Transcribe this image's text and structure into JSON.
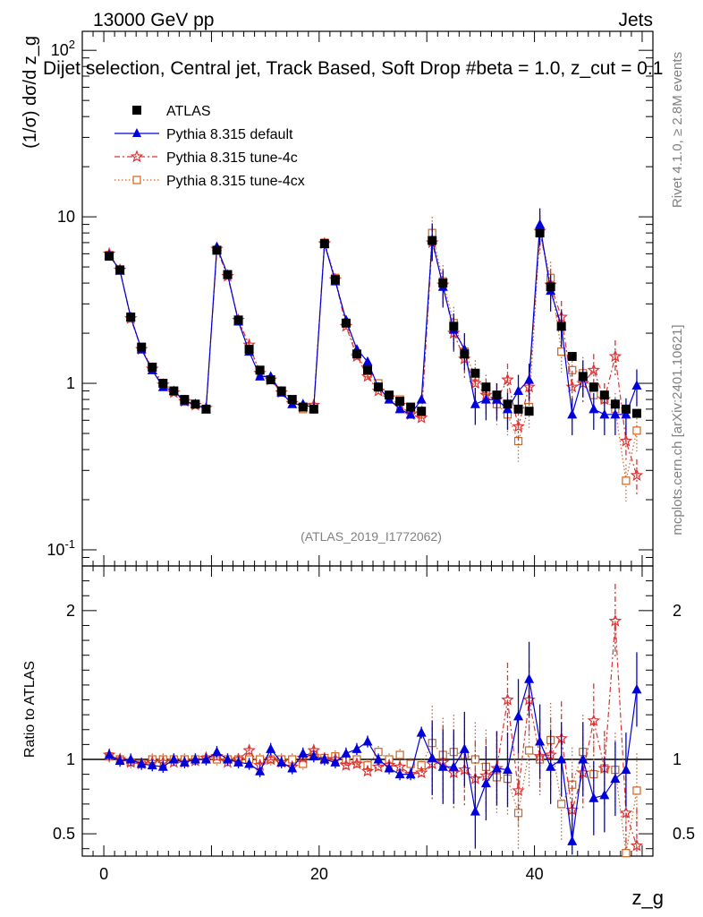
{
  "header": {
    "left": "13000 GeV pp",
    "right": "Jets"
  },
  "side_text": {
    "rivet": "Rivet 4.1.0, ≥ 2.8M events",
    "mcplots": "mcplots.cern.ch [arXiv:2401.10621]"
  },
  "colors": {
    "atlas": "#000000",
    "default": "#0000dd",
    "tune4c": "#dd3333",
    "tune4cx": "#cc6622"
  },
  "chart_data": {
    "type": "scatter",
    "title": "Dijet selection, Central jet, Track Based, Soft Drop #beta = 1.0, z_cut = 0.1",
    "xlabel": "z_g",
    "ylabel": "(1/σ) dσ/d z_g",
    "ratio_ylabel": "Ratio to ATLAS",
    "watermark": "(ATLAS_2019_I1772062)",
    "xlim": [
      -2,
      51
    ],
    "ylim": [
      0.08,
      130
    ],
    "ratio_ylim": [
      0.35,
      2.3
    ],
    "x_ticks": [
      "0",
      "20",
      "40"
    ],
    "y_ticks": [
      "10^-1",
      "1",
      "10",
      "10^2"
    ],
    "ratio_ticks": [
      "0.5",
      "1",
      "2"
    ],
    "x": [
      0.5,
      1.5,
      2.5,
      3.5,
      4.5,
      5.5,
      6.5,
      7.5,
      8.5,
      9.5,
      10.5,
      11.5,
      12.5,
      13.5,
      14.5,
      15.5,
      16.5,
      17.5,
      18.5,
      19.5,
      20.5,
      21.5,
      22.5,
      23.5,
      24.5,
      25.5,
      26.5,
      27.5,
      28.5,
      29.5,
      30.5,
      31.5,
      32.5,
      33.5,
      34.5,
      35.5,
      36.5,
      37.5,
      38.5,
      39.5,
      40.5,
      41.5,
      42.5,
      43.5,
      44.5,
      45.5,
      46.5,
      47.5,
      48.5,
      49.5
    ],
    "series": [
      {
        "name": "ATLAS",
        "marker": "square-filled",
        "values": [
          5.8,
          4.8,
          2.5,
          1.65,
          1.25,
          1.0,
          0.9,
          0.8,
          0.75,
          0.7,
          6.3,
          4.5,
          2.4,
          1.6,
          1.2,
          1.05,
          0.9,
          0.8,
          0.72,
          0.7,
          6.9,
          4.2,
          2.3,
          1.5,
          1.2,
          0.95,
          0.85,
          0.78,
          0.72,
          0.68,
          7.2,
          4.0,
          2.2,
          1.5,
          1.15,
          0.95,
          0.85,
          0.75,
          0.7,
          0.68,
          8.0,
          3.8,
          2.2,
          1.45,
          1.1,
          0.95,
          0.85,
          0.75,
          0.7,
          0.66
        ]
      },
      {
        "name": "Pythia 8.315 default",
        "marker": "triangle-filled",
        "values": [
          5.9,
          4.75,
          2.5,
          1.6,
          1.2,
          0.95,
          0.9,
          0.78,
          0.75,
          0.7,
          6.6,
          4.5,
          2.35,
          1.55,
          1.1,
          1.1,
          0.88,
          0.75,
          0.75,
          0.71,
          6.9,
          4.1,
          2.4,
          1.6,
          1.35,
          0.95,
          0.8,
          0.7,
          0.65,
          0.8,
          7.3,
          3.8,
          2.1,
          1.6,
          0.75,
          0.8,
          0.8,
          0.7,
          0.9,
          1.05,
          9.0,
          3.6,
          2.2,
          0.65,
          1.1,
          0.7,
          0.65,
          0.65,
          0.65,
          0.97
        ]
      },
      {
        "name": "Pythia 8.315 tune-4c",
        "marker": "star-open",
        "values": [
          6.0,
          4.8,
          2.45,
          1.6,
          1.22,
          0.98,
          0.88,
          0.78,
          0.74,
          0.71,
          6.4,
          4.4,
          2.4,
          1.7,
          1.15,
          1.05,
          0.88,
          0.76,
          0.73,
          0.74,
          6.9,
          4.2,
          2.2,
          1.45,
          1.1,
          0.9,
          0.82,
          0.74,
          0.65,
          0.62,
          7.0,
          3.9,
          2.0,
          1.4,
          1.0,
          0.85,
          0.8,
          1.05,
          0.55,
          0.95,
          8.2,
          3.9,
          2.5,
          0.95,
          1.0,
          1.2,
          0.8,
          1.45,
          0.45,
          0.28
        ]
      },
      {
        "name": "Pythia 8.315 tune-4cx",
        "marker": "square-open",
        "values": [
          5.9,
          4.8,
          2.45,
          1.6,
          1.25,
          1.0,
          0.9,
          0.8,
          0.75,
          0.7,
          6.3,
          4.5,
          2.4,
          1.6,
          1.2,
          1.05,
          0.9,
          0.8,
          0.7,
          0.72,
          7.0,
          4.3,
          2.3,
          1.5,
          1.15,
          1.0,
          0.85,
          0.8,
          0.7,
          0.65,
          8.0,
          4.1,
          2.3,
          1.55,
          1.1,
          0.9,
          0.75,
          0.65,
          0.45,
          0.72,
          8.0,
          4.3,
          1.55,
          1.2,
          1.15,
          0.85,
          0.8,
          0.7,
          0.26,
          0.52
        ]
      }
    ],
    "ratio_series": [
      {
        "name": "Pythia 8.315 default",
        "values": [
          1.03,
          0.99,
          1.0,
          0.97,
          0.96,
          0.95,
          1.0,
          0.98,
          1.0,
          1.0,
          1.05,
          1.0,
          0.98,
          0.97,
          0.92,
          1.07,
          0.98,
          0.94,
          1.04,
          1.02,
          1.0,
          0.98,
          1.04,
          1.07,
          1.12,
          1.0,
          0.94,
          0.9,
          0.9,
          1.18,
          1.01,
          0.95,
          0.95,
          1.07,
          0.65,
          0.84,
          0.94,
          0.93,
          1.29,
          1.54,
          1.12,
          0.95,
          1.0,
          0.45,
          1.0,
          0.74,
          0.76,
          0.87,
          0.93,
          1.47
        ]
      },
      {
        "name": "Pythia 8.315 tune-4c",
        "values": [
          1.03,
          1.0,
          0.98,
          0.97,
          0.98,
          0.98,
          0.98,
          0.98,
          0.99,
          1.01,
          1.02,
          0.98,
          1.0,
          1.06,
          0.96,
          1.0,
          0.98,
          0.95,
          1.01,
          1.06,
          1.0,
          1.0,
          0.96,
          0.97,
          0.92,
          0.95,
          0.96,
          0.95,
          0.9,
          0.91,
          0.97,
          0.98,
          0.91,
          0.93,
          0.87,
          0.89,
          0.94,
          1.4,
          0.79,
          1.4,
          1.02,
          1.03,
          1.14,
          0.66,
          0.91,
          1.26,
          0.94,
          1.93,
          0.64,
          0.42
        ]
      },
      {
        "name": "Pythia 8.315 tune-4cx",
        "values": [
          1.02,
          1.0,
          0.98,
          0.97,
          1.0,
          1.0,
          1.0,
          1.0,
          1.0,
          1.0,
          1.0,
          1.0,
          1.0,
          1.0,
          1.0,
          1.0,
          1.0,
          1.0,
          0.97,
          1.03,
          1.01,
          1.02,
          1.0,
          1.0,
          0.96,
          1.05,
          1.0,
          1.03,
          0.97,
          0.96,
          1.11,
          1.03,
          1.05,
          1.03,
          1.0,
          0.95,
          0.88,
          0.87,
          0.64,
          1.06,
          1.0,
          1.13,
          0.7,
          0.83,
          1.05,
          0.9,
          0.94,
          0.93,
          0.37,
          0.79
        ]
      }
    ]
  }
}
